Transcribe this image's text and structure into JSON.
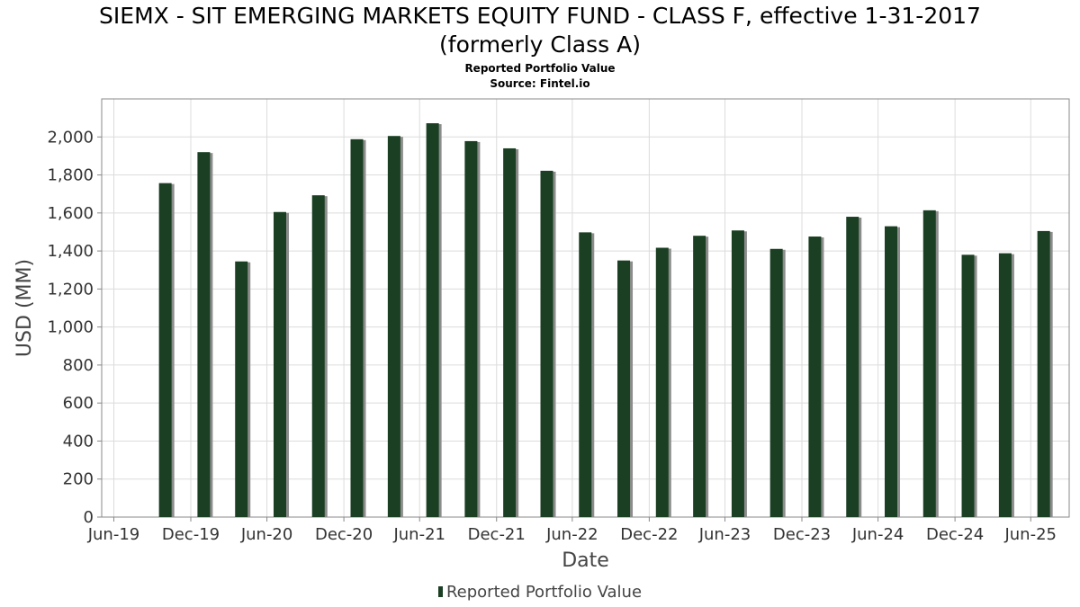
{
  "header": {
    "title_line1": "SIEMX - SIT EMERGING MARKETS EQUITY FUND - CLASS F, effective 1-31-2017",
    "title_line2": "(formerly Class A)",
    "subtitle_line1": "Reported Portfolio Value",
    "subtitle_line2": "Source: Fintel.io"
  },
  "colors": {
    "bar": "#1a3f22",
    "bar_shadow": "#8c8c8c",
    "grid": "#dcdcdc"
  },
  "chart_data": {
    "type": "bar",
    "title": "SIEMX - SIT EMERGING MARKETS EQUITY FUND - CLASS F, effective 1-31-2017 (formerly Class A)",
    "subtitle": "Reported Portfolio Value",
    "xlabel": "Date",
    "ylabel": "USD (MM)",
    "ylim": [
      0,
      2200
    ],
    "yticks": [
      0,
      200,
      400,
      600,
      800,
      1000,
      1200,
      1400,
      1600,
      1800,
      2000
    ],
    "xlim": [
      "2019-06-01",
      "2025-09-30"
    ],
    "xticks": [
      {
        "date": "2019-06-30",
        "label": "Jun-19"
      },
      {
        "date": "2019-12-31",
        "label": "Dec-19"
      },
      {
        "date": "2020-06-30",
        "label": "Jun-20"
      },
      {
        "date": "2020-12-31",
        "label": "Dec-20"
      },
      {
        "date": "2021-06-30",
        "label": "Jun-21"
      },
      {
        "date": "2021-12-31",
        "label": "Dec-21"
      },
      {
        "date": "2022-06-30",
        "label": "Jun-22"
      },
      {
        "date": "2022-12-31",
        "label": "Dec-22"
      },
      {
        "date": "2023-06-30",
        "label": "Jun-23"
      },
      {
        "date": "2023-12-31",
        "label": "Dec-23"
      },
      {
        "date": "2024-06-30",
        "label": "Jun-24"
      },
      {
        "date": "2024-12-31",
        "label": "Dec-24"
      },
      {
        "date": "2025-06-30",
        "label": "Jun-25"
      }
    ],
    "grid": true,
    "legend_position": "bottom",
    "series": [
      {
        "name": "Reported Portfolio Value",
        "points": [
          {
            "x": "2019-10-31",
            "y": 1757
          },
          {
            "x": "2020-01-31",
            "y": 1920
          },
          {
            "x": "2020-04-30",
            "y": 1345
          },
          {
            "x": "2020-07-31",
            "y": 1605
          },
          {
            "x": "2020-10-31",
            "y": 1693
          },
          {
            "x": "2021-01-31",
            "y": 1988
          },
          {
            "x": "2021-04-30",
            "y": 2005
          },
          {
            "x": "2021-07-31",
            "y": 2072
          },
          {
            "x": "2021-10-31",
            "y": 1978
          },
          {
            "x": "2022-01-31",
            "y": 1940
          },
          {
            "x": "2022-04-30",
            "y": 1822
          },
          {
            "x": "2022-07-31",
            "y": 1498
          },
          {
            "x": "2022-10-31",
            "y": 1350
          },
          {
            "x": "2023-01-31",
            "y": 1417
          },
          {
            "x": "2023-04-30",
            "y": 1480
          },
          {
            "x": "2023-07-31",
            "y": 1508
          },
          {
            "x": "2023-10-31",
            "y": 1411
          },
          {
            "x": "2024-01-31",
            "y": 1476
          },
          {
            "x": "2024-04-30",
            "y": 1580
          },
          {
            "x": "2024-07-31",
            "y": 1530
          },
          {
            "x": "2024-10-31",
            "y": 1614
          },
          {
            "x": "2025-01-31",
            "y": 1380
          },
          {
            "x": "2025-04-30",
            "y": 1388
          },
          {
            "x": "2025-07-31",
            "y": 1505
          }
        ]
      }
    ]
  }
}
